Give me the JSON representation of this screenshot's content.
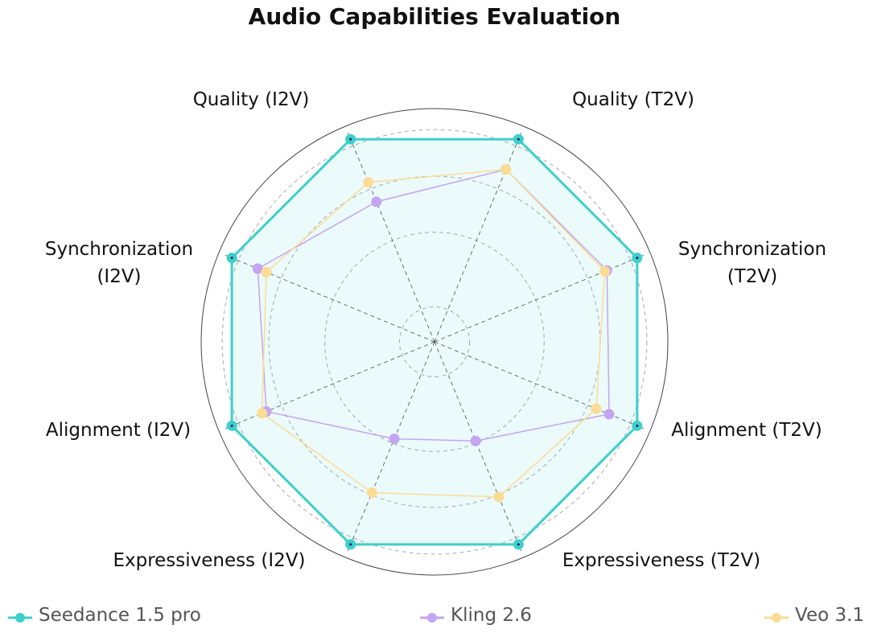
{
  "chart_data": {
    "type": "radar",
    "title": "Audio Capabilities Evaluation",
    "categories": [
      "Quality (T2V)",
      "Synchronization (T2V)",
      "Alignment (T2V)",
      "Expressiveness (T2V)",
      "Expressiveness (I2V)",
      "Alignment (I2V)",
      "Synchronization (I2V)",
      "Quality (I2V)"
    ],
    "series": [
      {
        "name": "Seedance 1.5 pro",
        "color": "#3ecfcb",
        "values": [
          0.94,
          0.94,
          0.94,
          0.94,
          0.94,
          0.94,
          0.94,
          0.94
        ]
      },
      {
        "name": "Kling 2.6",
        "color": "#c3a5f0",
        "values": [
          0.8,
          0.8,
          0.81,
          0.46,
          0.45,
          0.78,
          0.82,
          0.65
        ]
      },
      {
        "name": "Veo 3.1",
        "color": "#fbdc95",
        "values": [
          0.8,
          0.79,
          0.75,
          0.72,
          0.7,
          0.8,
          0.78,
          0.74
        ]
      }
    ],
    "ylim": [
      0,
      1
    ],
    "yticks": [
      0.15,
      0.47,
      0.71,
      0.91
    ],
    "grid": true
  }
}
